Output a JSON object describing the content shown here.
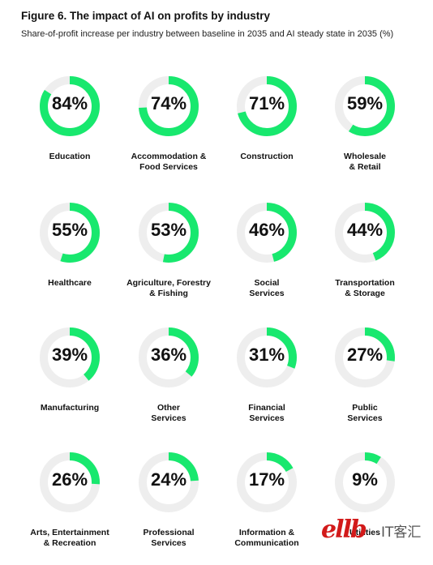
{
  "header": {
    "title": "Figure 6. The impact of AI on profits by industry",
    "subtitle": "Share-of-profit increase per industry between baseline in 2035 and AI steady state in 2035 (%)"
  },
  "colors": {
    "accent": "#18e86e",
    "track": "#eeeeee",
    "watermark": "#d21a1a"
  },
  "chart_data": {
    "type": "donut-grid",
    "title": "Figure 6. The impact of AI on profits by industry",
    "subtitle": "Share-of-profit increase per industry between baseline in 2035 and AI steady state in 2035 (%)",
    "unit": "%",
    "categories": [
      "Education",
      "Accommodation &\nFood Services",
      "Construction",
      "Wholesale\n& Retail",
      "Healthcare",
      "Agriculture, Forestry\n& Fishing",
      "Social\nServices",
      "Transportation\n& Storage",
      "Manufacturing",
      "Other\nServices",
      "Financial\nServices",
      "Public\nServices",
      "Arts, Entertainment\n& Recreation",
      "Professional\nServices",
      "Information &\nCommunication",
      "Utilities"
    ],
    "values": [
      84,
      74,
      71,
      59,
      55,
      53,
      46,
      44,
      39,
      36,
      31,
      27,
      26,
      24,
      17,
      9
    ],
    "labels": [
      "84%",
      "74%",
      "71%",
      "59%",
      "55%",
      "53%",
      "46%",
      "44%",
      "39%",
      "36%",
      "31%",
      "27%",
      "26%",
      "24%",
      "17%",
      "9%"
    ]
  },
  "watermark": {
    "logo": "ellb",
    "text": "IT客汇"
  }
}
